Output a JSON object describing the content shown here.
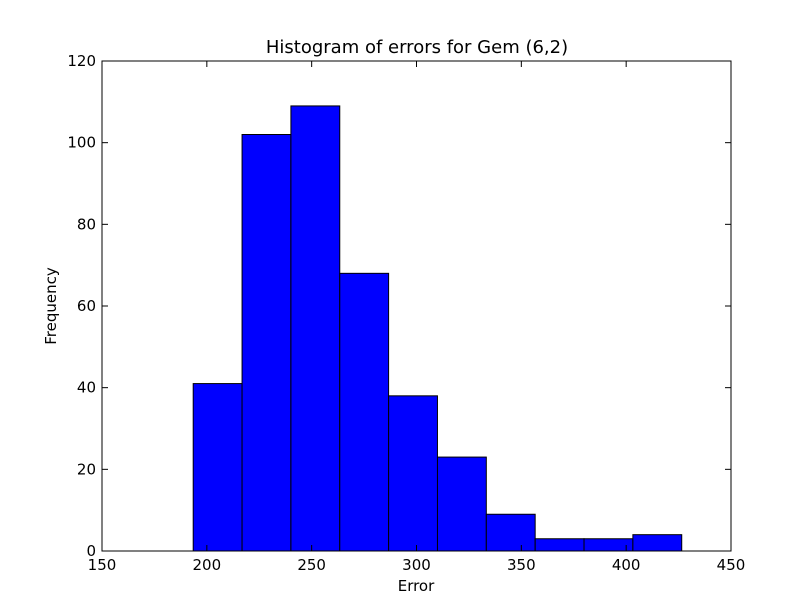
{
  "chart_data": {
    "type": "bar",
    "subtype": "histogram",
    "title": "Histogram of errors for Gem (6,2)",
    "xlabel": "Error",
    "ylabel": "Frequency",
    "xlim": [
      150,
      450
    ],
    "ylim": [
      0,
      120
    ],
    "xticks": [
      150,
      200,
      250,
      300,
      350,
      400,
      450
    ],
    "yticks": [
      0,
      20,
      40,
      60,
      80,
      100,
      120
    ],
    "bin_edges": [
      193.5,
      216.8,
      240.1,
      263.4,
      286.7,
      310.0,
      333.3,
      356.6,
      379.9,
      403.2,
      426.5
    ],
    "values": [
      41,
      102,
      109,
      68,
      38,
      23,
      9,
      3,
      3,
      4
    ],
    "bar_color": "#0000ff",
    "edge_color": "#000000",
    "grid": false
  }
}
